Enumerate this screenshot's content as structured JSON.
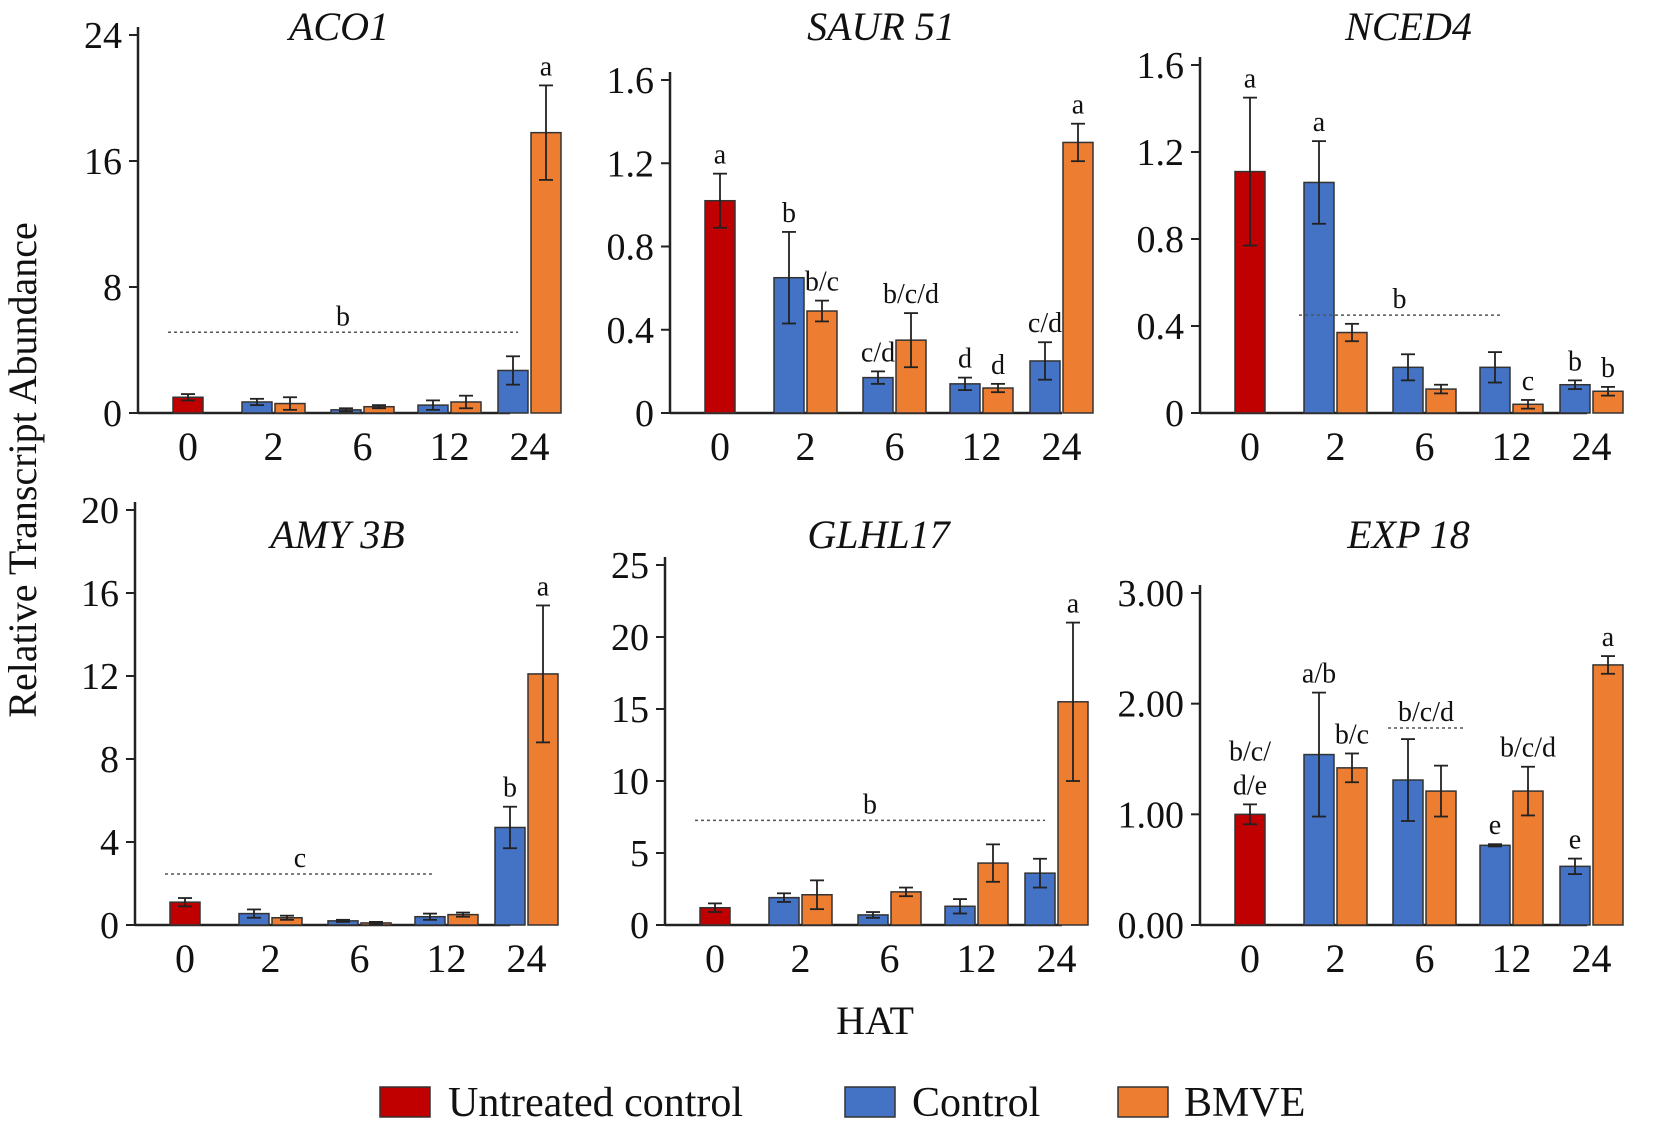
{
  "figure": {
    "y_axis_title": "Relative Transcript Abundance",
    "x_axis_title": "HAT"
  },
  "legend": [
    {
      "label": "Untreated control",
      "color": "#c00000"
    },
    {
      "label": "Control",
      "color": "#4472c4"
    },
    {
      "label": "BMVE",
      "color": "#ed7d31"
    }
  ],
  "chart_data": [
    {
      "type": "bar",
      "title": "ACO1",
      "xlabel": "HAT",
      "ylabel": "Relative Transcript Abundance",
      "categories": [
        "0",
        "2",
        "6",
        "12",
        "24"
      ],
      "ylim": [
        0,
        24
      ],
      "yticks": [
        "0",
        "8",
        "16",
        "24"
      ],
      "series": [
        {
          "name": "Untreated control",
          "values": [
            1.0,
            null,
            null,
            null,
            null
          ],
          "errors": [
            0.2,
            null,
            null,
            null,
            null
          ]
        },
        {
          "name": "Control",
          "values": [
            null,
            0.7,
            0.2,
            0.5,
            2.7
          ],
          "errors": [
            null,
            0.2,
            0.1,
            0.3,
            0.9
          ]
        },
        {
          "name": "BMVE",
          "values": [
            null,
            0.6,
            0.4,
            0.7,
            17.8
          ],
          "errors": [
            null,
            0.4,
            0.1,
            0.4,
            3.0
          ]
        }
      ],
      "annotations": [
        {
          "text": "b",
          "type": "group",
          "from": "0",
          "to": "24"
        },
        {
          "text": "a",
          "category": "24",
          "series": "BMVE"
        }
      ]
    },
    {
      "type": "bar",
      "title": "SAUR 51",
      "xlabel": "HAT",
      "ylabel": "Relative Transcript Abundance",
      "categories": [
        "0",
        "2",
        "6",
        "12",
        "24"
      ],
      "ylim": [
        0,
        1.6
      ],
      "yticks": [
        "0",
        "0.4",
        "0.8",
        "1.2",
        "1.6"
      ],
      "series": [
        {
          "name": "Untreated control",
          "values": [
            1.02,
            null,
            null,
            null,
            null
          ],
          "errors": [
            0.13,
            null,
            null,
            null,
            null
          ]
        },
        {
          "name": "Control",
          "values": [
            null,
            0.65,
            0.17,
            0.14,
            0.25
          ],
          "errors": [
            null,
            0.22,
            0.03,
            0.03,
            0.09
          ]
        },
        {
          "name": "BMVE",
          "values": [
            null,
            0.49,
            0.35,
            0.12,
            1.3
          ],
          "errors": [
            null,
            0.05,
            0.13,
            0.02,
            0.09
          ]
        }
      ],
      "annotations": [
        {
          "text": "a",
          "category": "0",
          "series": "Untreated control"
        },
        {
          "text": "b",
          "category": "2",
          "series": "Control"
        },
        {
          "text": "b/c",
          "category": "2",
          "series": "BMVE"
        },
        {
          "text": "c/d",
          "category": "6",
          "series": "Control"
        },
        {
          "text": "b/c/d",
          "category": "6",
          "series": "BMVE"
        },
        {
          "text": "d",
          "category": "12",
          "series": "Control"
        },
        {
          "text": "d",
          "category": "12",
          "series": "BMVE"
        },
        {
          "text": "c/d",
          "category": "24",
          "series": "Control"
        },
        {
          "text": "a",
          "category": "24",
          "series": "BMVE"
        }
      ]
    },
    {
      "type": "bar",
      "title": "NCED4",
      "xlabel": "HAT",
      "ylabel": "Relative Transcript Abundance",
      "categories": [
        "0",
        "2",
        "6",
        "12",
        "24"
      ],
      "ylim": [
        0,
        1.6
      ],
      "yticks": [
        "0",
        "0.4",
        "0.8",
        "1.2",
        "1.6"
      ],
      "series": [
        {
          "name": "Untreated control",
          "values": [
            1.11,
            null,
            null,
            null,
            null
          ],
          "errors": [
            0.34,
            null,
            null,
            null,
            null
          ]
        },
        {
          "name": "Control",
          "values": [
            null,
            1.06,
            0.21,
            0.21,
            0.13
          ],
          "errors": [
            null,
            0.19,
            0.06,
            0.07,
            0.02
          ]
        },
        {
          "name": "BMVE",
          "values": [
            null,
            0.37,
            0.11,
            0.04,
            0.1
          ],
          "errors": [
            null,
            0.04,
            0.02,
            0.02,
            0.02
          ]
        }
      ],
      "annotations": [
        {
          "text": "a",
          "category": "0",
          "series": "Untreated control"
        },
        {
          "text": "a",
          "category": "2",
          "series": "Control"
        },
        {
          "text": "b",
          "type": "group",
          "from": "2",
          "to": "12"
        },
        {
          "text": "c",
          "category": "12",
          "series": "BMVE"
        },
        {
          "text": "b",
          "category": "24",
          "series": "Control"
        },
        {
          "text": "b",
          "category": "24",
          "series": "BMVE"
        }
      ]
    },
    {
      "type": "bar",
      "title": "AMY 3B",
      "xlabel": "HAT",
      "ylabel": "Relative Transcript Abundance",
      "categories": [
        "0",
        "2",
        "6",
        "12",
        "24"
      ],
      "ylim": [
        0,
        20
      ],
      "yticks": [
        "0",
        "4",
        "8",
        "12",
        "16",
        "20"
      ],
      "series": [
        {
          "name": "Untreated control",
          "values": [
            1.1,
            null,
            null,
            null,
            null
          ],
          "errors": [
            0.2,
            null,
            null,
            null,
            null
          ]
        },
        {
          "name": "Control",
          "values": [
            null,
            0.55,
            0.2,
            0.4,
            4.7
          ],
          "errors": [
            null,
            0.2,
            0.05,
            0.15,
            1.0
          ]
        },
        {
          "name": "BMVE",
          "values": [
            null,
            0.35,
            0.1,
            0.5,
            12.1
          ],
          "errors": [
            null,
            0.1,
            0.05,
            0.1,
            3.3
          ]
        }
      ],
      "annotations": [
        {
          "text": "c",
          "type": "group",
          "from": "0",
          "to": "12"
        },
        {
          "text": "b",
          "category": "24",
          "series": "Control"
        },
        {
          "text": "a",
          "category": "24",
          "series": "BMVE"
        }
      ]
    },
    {
      "type": "bar",
      "title": "GLHL17",
      "xlabel": "HAT",
      "ylabel": "Relative Transcript Abundance",
      "categories": [
        "0",
        "2",
        "6",
        "12",
        "24"
      ],
      "ylim": [
        0,
        25
      ],
      "yticks": [
        "0",
        "5",
        "10",
        "15",
        "20",
        "25"
      ],
      "series": [
        {
          "name": "Untreated control",
          "values": [
            1.2,
            null,
            null,
            null,
            null
          ],
          "errors": [
            0.3,
            null,
            null,
            null,
            null
          ]
        },
        {
          "name": "Control",
          "values": [
            null,
            1.9,
            0.7,
            1.3,
            3.6
          ],
          "errors": [
            null,
            0.3,
            0.2,
            0.5,
            1.0
          ]
        },
        {
          "name": "BMVE",
          "values": [
            null,
            2.1,
            2.3,
            4.3,
            15.5
          ],
          "errors": [
            null,
            1.0,
            0.3,
            1.3,
            5.5
          ]
        }
      ],
      "annotations": [
        {
          "text": "b",
          "type": "group",
          "from": "0",
          "to": "24"
        },
        {
          "text": "a",
          "category": "24",
          "series": "BMVE"
        }
      ]
    },
    {
      "type": "bar",
      "title": "EXP 18",
      "xlabel": "HAT",
      "ylabel": "Relative Transcript Abundance",
      "categories": [
        "0",
        "2",
        "6",
        "12",
        "24"
      ],
      "ylim": [
        0,
        3
      ],
      "yticks": [
        "0.00",
        "1.00",
        "2.00",
        "3.00"
      ],
      "series": [
        {
          "name": "Untreated control",
          "values": [
            1.0,
            null,
            null,
            null,
            null
          ],
          "errors": [
            0.09,
            null,
            null,
            null,
            null
          ]
        },
        {
          "name": "Control",
          "values": [
            null,
            1.54,
            1.31,
            0.72,
            0.53
          ],
          "errors": [
            null,
            0.56,
            0.37,
            0.01,
            0.07
          ]
        },
        {
          "name": "BMVE",
          "values": [
            null,
            1.42,
            1.21,
            1.21,
            2.35
          ],
          "errors": [
            null,
            0.13,
            0.23,
            0.22,
            0.08
          ]
        }
      ],
      "annotations": [
        {
          "text": "b/c/",
          "category": "0",
          "series": "Untreated control",
          "line": 0
        },
        {
          "text": "d/e",
          "category": "0",
          "series": "Untreated control",
          "line": 1
        },
        {
          "text": "a/b",
          "category": "2",
          "series": "Control"
        },
        {
          "text": "b/c",
          "category": "2",
          "series": "BMVE"
        },
        {
          "text": "b/c/d",
          "type": "group",
          "from": "6",
          "to": "6"
        },
        {
          "text": "e",
          "category": "12",
          "series": "Control"
        },
        {
          "text": "b/c/d",
          "category": "12",
          "series": "BMVE"
        },
        {
          "text": "e",
          "category": "24",
          "series": "Control"
        },
        {
          "text": "a",
          "category": "24",
          "series": "BMVE"
        }
      ]
    }
  ]
}
